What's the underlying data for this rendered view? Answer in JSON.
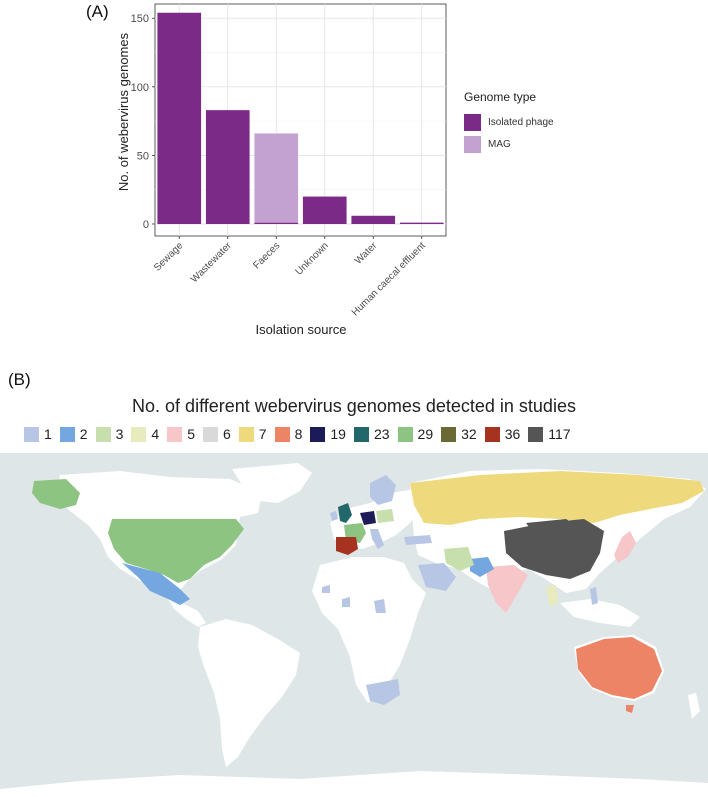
{
  "panels": {
    "a_label": "(A)",
    "b_label": "(B)"
  },
  "chart_data": [
    {
      "type": "bar",
      "title": "",
      "xlabel": "Isolation source",
      "ylabel": "No. of webervirus genomes",
      "categories": [
        "Sewage",
        "Wastewater",
        "Faeces",
        "Unknown",
        "Water",
        "Human caecal effluent"
      ],
      "ylim": [
        0,
        160
      ],
      "yticks": [
        0,
        50,
        100,
        150
      ],
      "stacked": true,
      "series": [
        {
          "name": "Isolated phage",
          "color": "#7b2b87",
          "values": [
            154,
            83,
            1,
            20,
            6,
            1
          ]
        },
        {
          "name": "MAG",
          "color": "#c3a2d1",
          "values": [
            0,
            0,
            65,
            0,
            0,
            0
          ]
        }
      ],
      "legend": {
        "title": "Genome type",
        "position": "right"
      },
      "grid": true
    },
    {
      "type": "choropleth",
      "title": "No. of different webervirus genomes detected in studies",
      "legend": [
        {
          "label": "1",
          "color": "#b8c6e6"
        },
        {
          "label": "2",
          "color": "#74a7df"
        },
        {
          "label": "3",
          "color": "#c6dfac"
        },
        {
          "label": "4",
          "color": "#e7ebbd"
        },
        {
          "label": "5",
          "color": "#f6c6c9"
        },
        {
          "label": "6",
          "color": "#d9d9d9"
        },
        {
          "label": "7",
          "color": "#efd97d"
        },
        {
          "label": "8",
          "color": "#ee8466"
        },
        {
          "label": "19",
          "color": "#1d1b57"
        },
        {
          "label": "23",
          "color": "#22686b"
        },
        {
          "label": "29",
          "color": "#8ec482"
        },
        {
          "label": "32",
          "color": "#6b6a34"
        },
        {
          "label": "36",
          "color": "#a5331f"
        },
        {
          "label": "117",
          "color": "#555555"
        }
      ],
      "background_color": "#dfe6e8",
      "land_color": "#ffffff"
    }
  ]
}
